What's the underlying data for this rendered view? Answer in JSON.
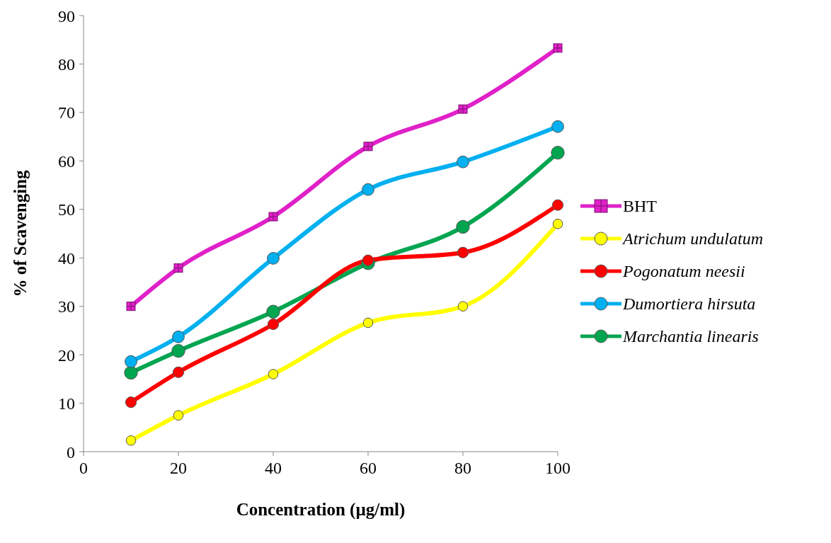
{
  "chart_data": {
    "type": "line",
    "xlabel": "Concentration (µg/ml)",
    "ylabel": "% of Scavenging",
    "x": [
      10,
      20,
      40,
      60,
      80,
      100
    ],
    "xlim": [
      0,
      100
    ],
    "xticks": [
      0,
      20,
      40,
      60,
      80,
      100
    ],
    "ylim": [
      0,
      90
    ],
    "yticks": [
      0,
      10,
      20,
      30,
      40,
      50,
      60,
      70,
      80,
      90
    ],
    "grid": false,
    "legend": "right",
    "series": [
      {
        "name": "BHT",
        "color": "#e020c8",
        "marker": "square",
        "values": [
          30,
          37.9,
          48.5,
          63,
          70.7,
          83.3
        ]
      },
      {
        "name": "Atrichum undulatum",
        "color": "#ffff00",
        "marker": "circle",
        "values": [
          2.3,
          7.5,
          16,
          26.6,
          30,
          47
        ]
      },
      {
        "name": "Pogonatum neesii",
        "color": "#ff0000",
        "marker": "circle",
        "values": [
          10.2,
          16.4,
          26.3,
          39.5,
          41.1,
          50.9
        ]
      },
      {
        "name": "Dumortiera hirsuta",
        "color": "#00b0f0",
        "marker": "circle",
        "values": [
          18.6,
          23.7,
          39.9,
          54.1,
          59.8,
          67.1
        ]
      },
      {
        "name": "Marchantia linearis",
        "color": "#00a550",
        "marker": "circle",
        "values": [
          16.3,
          20.8,
          28.9,
          38.9,
          46.4,
          61.7
        ]
      }
    ]
  }
}
